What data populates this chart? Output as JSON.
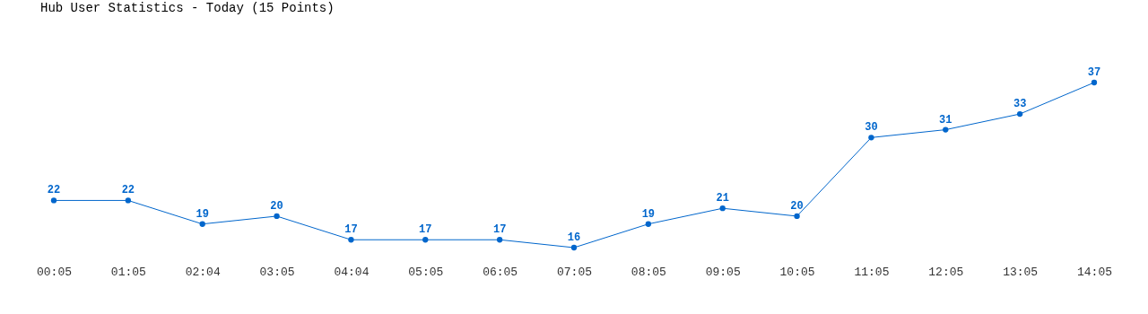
{
  "chart_data": {
    "type": "line",
    "title": "Hub User Statistics - Today (15 Points)",
    "categories": [
      "00:05",
      "01:05",
      "02:04",
      "03:05",
      "04:04",
      "05:05",
      "06:05",
      "07:05",
      "08:05",
      "09:05",
      "10:05",
      "11:05",
      "12:05",
      "13:05",
      "14:05"
    ],
    "series": [
      {
        "color": "#0066cc",
        "values": [
          22,
          22,
          19,
          20,
          17,
          17,
          17,
          16,
          19,
          21,
          20,
          30,
          31,
          33,
          37
        ]
      }
    ],
    "data_labels": true,
    "marker": "circle",
    "grid": false,
    "legend": false,
    "tick_labels": "x"
  }
}
